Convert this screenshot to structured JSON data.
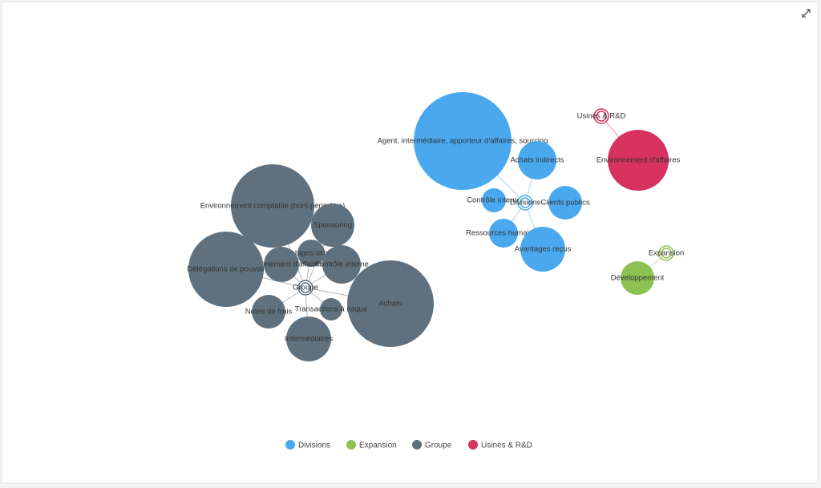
{
  "groups": [
    {
      "name": "Divisions",
      "color": "#4aa9ee",
      "nodes": [
        "Agent, intermédiaire, apporteur d'affaires, sourcing",
        "Achats indirects",
        "Contrôle interne",
        "Clients publics",
        "Ressources humaines",
        "Avantages reçus"
      ]
    },
    {
      "name": "Expansion",
      "color": "#8dc153",
      "nodes": [
        "Développement"
      ]
    },
    {
      "name": "Groupe",
      "color": "#5f717e",
      "nodes": [
        "Environnement comptable (hors périmètre)",
        "Sponsoring",
        "Avantages octroyés",
        "Environnement d'affaires",
        "Contrôle interne",
        "Délégations de pouvoir",
        "Achats",
        "Transactions à risque",
        "Notes de frais",
        "Intermédiaires"
      ]
    },
    {
      "name": "Usines & R&D",
      "color": "#d7335e",
      "nodes": [
        "Environnement d'affaires"
      ]
    }
  ]
}
